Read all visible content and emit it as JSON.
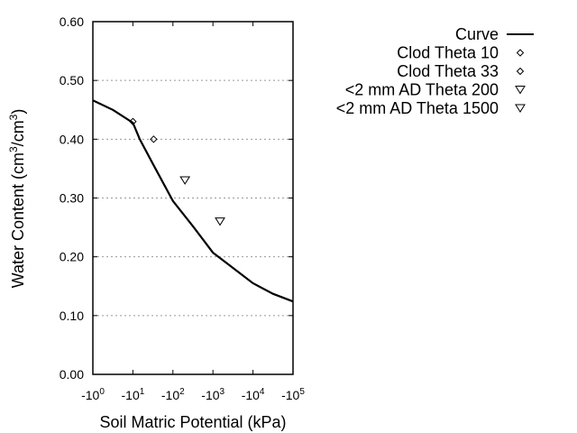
{
  "chart_data": {
    "type": "line",
    "xlabel": "Soil Matric Potential (kPa)",
    "ylabel_parts": [
      "Water Content (cm",
      "3",
      "/cm",
      "3",
      ")"
    ],
    "x_scale": "log",
    "xlim": [
      1,
      100000
    ],
    "x_ticks": [
      {
        "base": "-10",
        "exp": "0",
        "value": 1
      },
      {
        "base": "-10",
        "exp": "1",
        "value": 10
      },
      {
        "base": "-10",
        "exp": "2",
        "value": 100
      },
      {
        "base": "-10",
        "exp": "3",
        "value": 1000
      },
      {
        "base": "-10",
        "exp": "4",
        "value": 10000
      },
      {
        "base": "-10",
        "exp": "5",
        "value": 100000
      }
    ],
    "ylim": [
      0,
      0.6
    ],
    "y_ticks": [
      "0.00",
      "0.10",
      "0.20",
      "0.30",
      "0.40",
      "0.50",
      "0.60"
    ],
    "grid": "horizontal dotted",
    "legend_position": "top-right, outside plot",
    "series": [
      {
        "name": "Curve",
        "type": "line",
        "color": "#000000",
        "x": [
          1,
          3.16,
          10,
          14.8,
          31.6,
          100,
          316,
          1000,
          3162,
          10000,
          31623,
          100000
        ],
        "y": [
          0.466,
          0.45,
          0.428,
          0.4,
          0.358,
          0.295,
          0.252,
          0.207,
          0.181,
          0.155,
          0.137,
          0.124
        ]
      },
      {
        "name": "Clod Theta 10",
        "type": "scatter",
        "marker": "diamond",
        "x": [
          10
        ],
        "y": [
          0.43
        ]
      },
      {
        "name": "Clod Theta 33",
        "type": "scatter",
        "marker": "diamond",
        "x": [
          33
        ],
        "y": [
          0.4
        ]
      },
      {
        "name": "<2 mm AD Theta 200",
        "type": "scatter",
        "marker": "triangle-down",
        "x": [
          200
        ],
        "y": [
          0.33
        ]
      },
      {
        "name": "<2 mm AD Theta 1500",
        "type": "scatter",
        "marker": "triangle-down",
        "x": [
          1500
        ],
        "y": [
          0.26
        ]
      }
    ]
  }
}
